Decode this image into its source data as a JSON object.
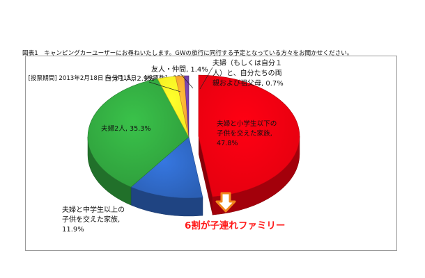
{
  "caption": {
    "line1": "図表1　キャンピングカーユーザーにお尋ねいたします。GWの旅行に同行する予定となっている方々をお聞かせください。",
    "line2": "　[投票期間] 2013年2月18日 ～ 3月15日　 [投票数]　278"
  },
  "chart_data": {
    "type": "pie",
    "three_d": true,
    "slices": [
      {
        "label_lines": [
          "夫婦と小学生以下の",
          "子供を交えた家族,",
          "47.8%"
        ],
        "value": 47.8,
        "color": "#e3000f"
      },
      {
        "label_lines": [
          "夫婦と中学生以上の",
          "子供を交えた家族,",
          "11.9%"
        ],
        "value": 11.9,
        "color": "#2b5fb4"
      },
      {
        "label_lines": [
          "夫婦2人, 35.3%"
        ],
        "value": 35.3,
        "color": "#2e9b3b"
      },
      {
        "label_lines": [
          "自分１人, 2.9%"
        ],
        "value": 2.9,
        "color": "#f4ea22"
      },
      {
        "label_lines": [
          "友人・仲間, 1.4%"
        ],
        "value": 1.4,
        "color": "#f39a2d"
      },
      {
        "label_lines": [
          "夫婦（もしくは自分１",
          "人）と、自分たちの両",
          "親および祖父母, 0.7%"
        ],
        "value": 0.7,
        "color": "#6a3a9a"
      }
    ],
    "annotation": "6割が子連れファミリー"
  }
}
